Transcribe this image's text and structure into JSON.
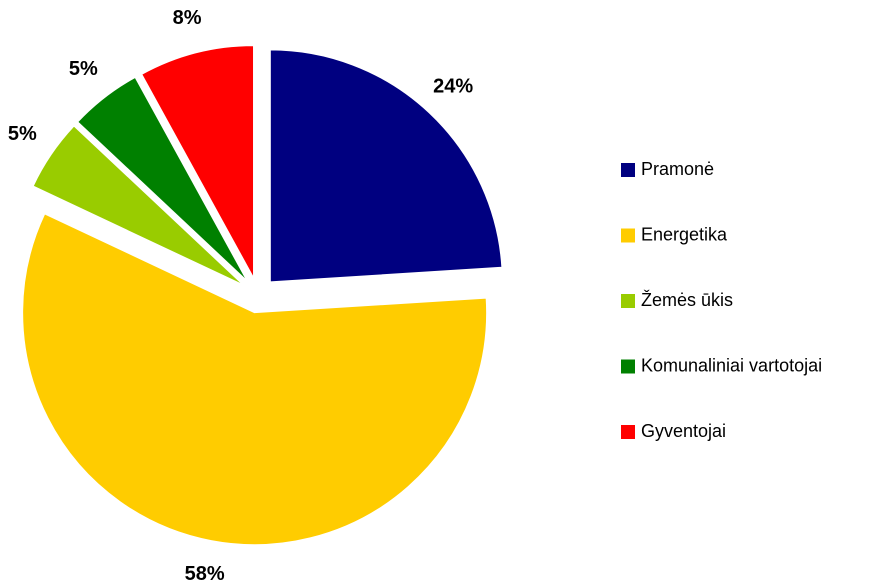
{
  "chart_data": {
    "type": "pie",
    "categories": [
      "Pramonė",
      "Energetika",
      "Žemės ūkis",
      "Komunaliniai vartotojai",
      "Gyventojai"
    ],
    "values": [
      24,
      58,
      5,
      5,
      8
    ],
    "value_labels": [
      "24%",
      "58%",
      "5%",
      "5%",
      "8%"
    ],
    "colors": [
      "#000080",
      "#ffcc00",
      "#99cc00",
      "#008000",
      "#ff0000"
    ],
    "legend": "right"
  }
}
